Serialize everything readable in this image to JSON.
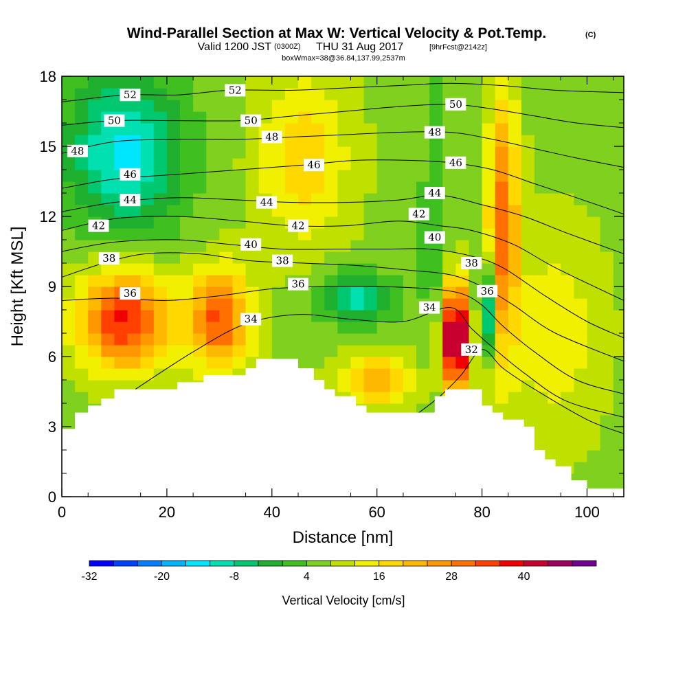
{
  "chart_data": {
    "type": "heatmap",
    "title": "Wind-Parallel Section at Max W: Vertical Velocity & Pot.Temp.",
    "title_mark": "(C)",
    "subtitle": {
      "valid": "Valid 1200 JST",
      "utc": "(0300Z)",
      "date": "THU 31 Aug 2017",
      "fcst": "[9hrFcst@2142z]"
    },
    "box_info": "boxWmax=38@36.84,137.99,2537m",
    "xlabel": "Distance [nm]",
    "ylabel": "Height [Kft MSL]",
    "xlim": [
      0,
      107
    ],
    "ylim": [
      0,
      18
    ],
    "x_ticks": [
      "0",
      "20",
      "40",
      "60",
      "80",
      "100"
    ],
    "y_ticks": [
      "0",
      "3",
      "6",
      "9",
      "12",
      "15",
      "18"
    ],
    "colorbar": {
      "label": "Vertical Velocity [cm/s]",
      "tick_labels": [
        "-32",
        "-20",
        "-8",
        "4",
        "16",
        "28",
        "40"
      ],
      "colors": [
        "#0000ff",
        "#0040ff",
        "#0080ff",
        "#00b4ff",
        "#00e6ff",
        "#00e0b0",
        "#00c870",
        "#20b030",
        "#40c020",
        "#80d020",
        "#c0e000",
        "#f0f000",
        "#ffd800",
        "#ffb800",
        "#ff9800",
        "#ff7000",
        "#ff4000",
        "#f00000",
        "#c80030",
        "#a00060",
        "#700090"
      ]
    },
    "w_field": {
      "x": [
        0,
        2.5,
        5,
        7.5,
        10,
        12.5,
        15,
        17.5,
        20,
        22.5,
        25,
        27.5,
        30,
        32.5,
        35,
        37.5,
        40,
        42.5,
        45,
        47.5,
        50,
        52.5,
        55,
        57.5,
        60,
        62.5,
        65,
        67.5,
        70,
        72.5,
        75,
        77.5,
        80,
        82.5,
        85,
        87.5,
        90,
        92.5,
        95,
        97.5,
        100,
        102.5,
        105,
        107
      ],
      "y": [
        0,
        0.5,
        1,
        1.5,
        2,
        2.5,
        3,
        3.5,
        4,
        4.5,
        5,
        5.5,
        6,
        6.5,
        7,
        7.5,
        8,
        8.5,
        9,
        9.5,
        10,
        10.5,
        11,
        11.5,
        12,
        12.5,
        13,
        13.5,
        14,
        14.5,
        15,
        15.5,
        16,
        16.5,
        17,
        17.5,
        18
      ],
      "hotspots": [
        {
          "x": 12,
          "y": 7.6,
          "w": 30,
          "sx": 6,
          "sy": 1.5
        },
        {
          "x": 30,
          "y": 7.6,
          "w": 26,
          "sx": 4,
          "sy": 1.5
        },
        {
          "x": 60,
          "y": 5.0,
          "w": 16,
          "sx": 5,
          "sy": 0.8
        },
        {
          "x": 75,
          "y": 6.8,
          "w": 46,
          "sx": 1.8,
          "sy": 1.6
        },
        {
          "x": 81,
          "y": 8.0,
          "w": -22,
          "sx": 1.2,
          "sy": 1.3
        },
        {
          "x": 84,
          "y": 11.5,
          "w": 24,
          "sx": 2,
          "sy": 4
        },
        {
          "x": 12,
          "y": 14.8,
          "w": -20,
          "sx": 8,
          "sy": 2.5
        },
        {
          "x": 46,
          "y": 14.5,
          "w": 12,
          "sx": 6,
          "sy": 2.5
        },
        {
          "x": 56,
          "y": 8.5,
          "w": -16,
          "sx": 5,
          "sy": 0.8
        },
        {
          "x": 71,
          "y": 12,
          "w": -6,
          "sx": 2,
          "sy": 5
        },
        {
          "x": 94,
          "y": 7,
          "w": 8,
          "sx": 6,
          "sy": 3
        }
      ]
    },
    "terrain": [
      [
        0,
        2.9
      ],
      [
        2.5,
        2.9
      ],
      [
        2.5,
        3.6
      ],
      [
        5,
        3.6
      ],
      [
        5,
        3.9
      ],
      [
        7.5,
        3.9
      ],
      [
        7.5,
        4.2
      ],
      [
        10,
        4.2
      ],
      [
        10,
        4.6
      ],
      [
        22,
        4.6
      ],
      [
        22,
        4.9
      ],
      [
        27,
        4.9
      ],
      [
        27,
        5.2
      ],
      [
        35,
        5.2
      ],
      [
        35,
        5.5
      ],
      [
        37,
        5.5
      ],
      [
        37,
        5.9
      ],
      [
        45,
        5.9
      ],
      [
        45,
        5.5
      ],
      [
        48,
        5.5
      ],
      [
        48,
        5.0
      ],
      [
        50,
        5.0
      ],
      [
        50,
        4.6
      ],
      [
        52,
        4.6
      ],
      [
        52,
        4.3
      ],
      [
        56,
        4.3
      ],
      [
        56,
        3.9
      ],
      [
        58,
        3.9
      ],
      [
        58,
        3.6
      ],
      [
        71,
        3.6
      ],
      [
        71,
        4.3
      ],
      [
        73,
        4.3
      ],
      [
        73,
        4.6
      ],
      [
        80,
        4.6
      ],
      [
        80,
        3.9
      ],
      [
        82,
        3.9
      ],
      [
        82,
        3.6
      ],
      [
        84,
        3.6
      ],
      [
        84,
        3.3
      ],
      [
        88,
        3.3
      ],
      [
        88,
        3.0
      ],
      [
        90,
        3.0
      ],
      [
        90,
        2.0
      ],
      [
        92,
        2.0
      ],
      [
        92,
        1.6
      ],
      [
        94,
        1.6
      ],
      [
        94,
        1.3
      ],
      [
        97,
        1.3
      ],
      [
        97,
        0.7
      ],
      [
        100,
        0.7
      ],
      [
        100,
        0.35
      ],
      [
        107,
        0.35
      ],
      [
        107,
        0
      ],
      [
        0,
        0
      ]
    ],
    "theta_contours": [
      {
        "label": "32",
        "pts": [
          [
            68,
            3.6
          ],
          [
            72,
            4.3
          ],
          [
            76,
            5.2
          ],
          [
            80,
            6.3
          ],
          [
            84,
            5.5
          ],
          [
            90,
            4.6
          ],
          [
            100,
            3.3
          ],
          [
            107,
            2.7
          ]
        ]
      },
      {
        "label": "34",
        "pts": [
          [
            14,
            4.6
          ],
          [
            25,
            6.2
          ],
          [
            35,
            7.4
          ],
          [
            45,
            7.8
          ],
          [
            55,
            7.6
          ],
          [
            65,
            7.5
          ],
          [
            74,
            8.1
          ],
          [
            78,
            7.2
          ],
          [
            82,
            6.4
          ],
          [
            88,
            5.3
          ],
          [
            96,
            4.1
          ],
          [
            107,
            3.4
          ]
        ]
      },
      {
        "label": "36",
        "pts": [
          [
            0,
            8.4
          ],
          [
            10,
            8.5
          ],
          [
            20,
            8.4
          ],
          [
            30,
            8.6
          ],
          [
            40,
            8.9
          ],
          [
            50,
            9.0
          ],
          [
            60,
            9.0
          ],
          [
            70,
            8.9
          ],
          [
            76,
            8.7
          ],
          [
            80,
            8.2
          ],
          [
            84,
            7.3
          ],
          [
            90,
            6.2
          ],
          [
            98,
            5.0
          ],
          [
            107,
            4.4
          ]
        ]
      },
      {
        "label": "38",
        "pts": [
          [
            0,
            9.4
          ],
          [
            8,
            10.0
          ],
          [
            16,
            10.4
          ],
          [
            26,
            10.4
          ],
          [
            36,
            10.1
          ],
          [
            46,
            10.0
          ],
          [
            56,
            9.9
          ],
          [
            66,
            9.7
          ],
          [
            74,
            9.5
          ],
          [
            80,
            9.0
          ],
          [
            86,
            8.2
          ],
          [
            94,
            7.0
          ],
          [
            107,
            5.8
          ]
        ]
      },
      {
        "label": "40",
        "pts": [
          [
            0,
            10.5
          ],
          [
            10,
            10.9
          ],
          [
            22,
            11.0
          ],
          [
            32,
            10.8
          ],
          [
            42,
            10.6
          ],
          [
            52,
            10.6
          ],
          [
            62,
            10.6
          ],
          [
            70,
            10.6
          ],
          [
            78,
            10.3
          ],
          [
            84,
            9.8
          ],
          [
            92,
            8.6
          ],
          [
            100,
            7.5
          ],
          [
            107,
            6.8
          ]
        ]
      },
      {
        "label": "42",
        "pts": [
          [
            0,
            11.4
          ],
          [
            10,
            11.9
          ],
          [
            22,
            12.0
          ],
          [
            34,
            11.8
          ],
          [
            44,
            11.6
          ],
          [
            54,
            11.6
          ],
          [
            64,
            11.8
          ],
          [
            72,
            11.6
          ],
          [
            78,
            11.4
          ],
          [
            86,
            10.8
          ],
          [
            94,
            9.8
          ],
          [
            107,
            8.4
          ]
        ]
      },
      {
        "label": "44",
        "pts": [
          [
            0,
            12.2
          ],
          [
            10,
            12.6
          ],
          [
            22,
            12.8
          ],
          [
            34,
            12.7
          ],
          [
            44,
            12.6
          ],
          [
            54,
            12.6
          ],
          [
            64,
            12.7
          ],
          [
            72,
            12.9
          ],
          [
            80,
            12.5
          ],
          [
            88,
            12.0
          ],
          [
            96,
            11.3
          ],
          [
            107,
            10.4
          ]
        ]
      },
      {
        "label": "46",
        "pts": [
          [
            0,
            13.2
          ],
          [
            10,
            13.6
          ],
          [
            22,
            13.8
          ],
          [
            34,
            14.0
          ],
          [
            46,
            14.2
          ],
          [
            56,
            14.4
          ],
          [
            66,
            14.4
          ],
          [
            74,
            14.3
          ],
          [
            82,
            14.0
          ],
          [
            90,
            13.4
          ],
          [
            98,
            12.8
          ],
          [
            107,
            12.1
          ]
        ]
      },
      {
        "label": "48",
        "pts": [
          [
            0,
            14.7
          ],
          [
            10,
            15.2
          ],
          [
            22,
            15.3
          ],
          [
            34,
            15.3
          ],
          [
            44,
            15.4
          ],
          [
            54,
            15.5
          ],
          [
            64,
            15.6
          ],
          [
            74,
            15.6
          ],
          [
            82,
            15.3
          ],
          [
            90,
            14.9
          ],
          [
            98,
            14.5
          ],
          [
            107,
            14.1
          ]
        ]
      },
      {
        "label": "50",
        "pts": [
          [
            0,
            15.9
          ],
          [
            10,
            16.1
          ],
          [
            22,
            16.1
          ],
          [
            34,
            16.1
          ],
          [
            44,
            16.3
          ],
          [
            54,
            16.5
          ],
          [
            64,
            16.7
          ],
          [
            74,
            16.8
          ],
          [
            82,
            16.6
          ],
          [
            90,
            16.3
          ],
          [
            98,
            16.0
          ],
          [
            107,
            15.8
          ]
        ]
      },
      {
        "label": "52",
        "pts": [
          [
            0,
            16.9
          ],
          [
            12,
            17.2
          ],
          [
            22,
            17.2
          ],
          [
            32,
            17.4
          ],
          [
            44,
            17.4
          ],
          [
            54,
            17.5
          ],
          [
            64,
            17.6
          ],
          [
            74,
            17.7
          ],
          [
            84,
            17.6
          ],
          [
            94,
            17.4
          ],
          [
            107,
            17.3
          ]
        ]
      }
    ],
    "contour_labels": [
      {
        "text": "52",
        "x": 13,
        "y": 17.2
      },
      {
        "text": "52",
        "x": 33,
        "y": 17.4
      },
      {
        "text": "50",
        "x": 10,
        "y": 16.1
      },
      {
        "text": "50",
        "x": 36,
        "y": 16.1
      },
      {
        "text": "50",
        "x": 75,
        "y": 16.8
      },
      {
        "text": "48",
        "x": 3,
        "y": 14.8
      },
      {
        "text": "48",
        "x": 40,
        "y": 15.4
      },
      {
        "text": "48",
        "x": 71,
        "y": 15.6
      },
      {
        "text": "46",
        "x": 13,
        "y": 13.8
      },
      {
        "text": "46",
        "x": 48,
        "y": 14.2
      },
      {
        "text": "46",
        "x": 75,
        "y": 14.3
      },
      {
        "text": "44",
        "x": 13,
        "y": 12.7
      },
      {
        "text": "44",
        "x": 39,
        "y": 12.6
      },
      {
        "text": "44",
        "x": 71,
        "y": 13.0
      },
      {
        "text": "42",
        "x": 7,
        "y": 11.6
      },
      {
        "text": "42",
        "x": 45,
        "y": 11.6
      },
      {
        "text": "42",
        "x": 68,
        "y": 12.1
      },
      {
        "text": "40",
        "x": 36,
        "y": 10.8
      },
      {
        "text": "40",
        "x": 71,
        "y": 11.1
      },
      {
        "text": "38",
        "x": 9,
        "y": 10.2
      },
      {
        "text": "38",
        "x": 42,
        "y": 10.1
      },
      {
        "text": "38",
        "x": 78,
        "y": 10.0
      },
      {
        "text": "36",
        "x": 13,
        "y": 8.7
      },
      {
        "text": "36",
        "x": 45,
        "y": 9.1
      },
      {
        "text": "36",
        "x": 81,
        "y": 8.8
      },
      {
        "text": "34",
        "x": 36,
        "y": 7.6
      },
      {
        "text": "34",
        "x": 70,
        "y": 8.1
      },
      {
        "text": "32",
        "x": 78,
        "y": 6.3
      }
    ]
  }
}
